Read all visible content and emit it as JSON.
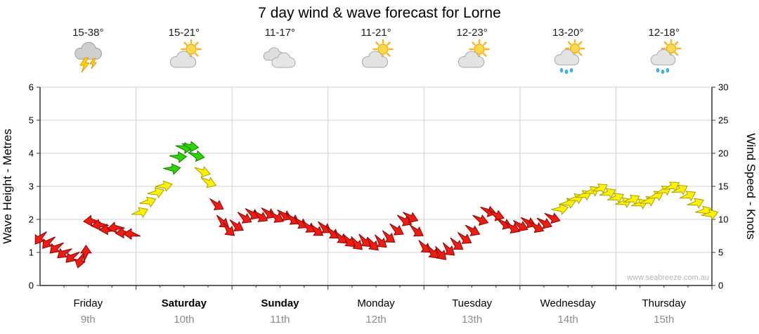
{
  "title": "7 day wind & wave forecast for Lorne",
  "watermark": "www.seabreeze.com.au",
  "days": [
    {
      "name": "Friday",
      "date": "9th",
      "temp": "15-38°",
      "icon": "storm",
      "bold": false
    },
    {
      "name": "Saturday",
      "date": "10th",
      "temp": "15-21°",
      "icon": "sun-cloud",
      "bold": true
    },
    {
      "name": "Sunday",
      "date": "11th",
      "temp": "11-17°",
      "icon": "cloud",
      "bold": true
    },
    {
      "name": "Monday",
      "date": "12th",
      "temp": "11-21°",
      "icon": "sun-cloud",
      "bold": false
    },
    {
      "name": "Tuesday",
      "date": "13th",
      "temp": "12-23°",
      "icon": "sun-cloud",
      "bold": false
    },
    {
      "name": "Wednesday",
      "date": "14th",
      "temp": "13-20°",
      "icon": "sun-rain",
      "bold": false
    },
    {
      "name": "Thursday",
      "date": "15th",
      "temp": "12-18°",
      "icon": "sun-rain",
      "bold": false
    }
  ],
  "chart_data": {
    "type": "scatter",
    "subtype": "wind-arrow-forecast",
    "title": "7 day wind & wave forecast for Lorne",
    "left_axis": {
      "label": "Wave Height - Metres",
      "min": 0,
      "max": 6,
      "ticks": [
        0,
        1,
        2,
        3,
        4,
        5,
        6
      ]
    },
    "right_axis": {
      "label": "Wind Speed - Knots",
      "min": 0,
      "max": 30,
      "ticks": [
        0,
        5,
        10,
        15,
        20,
        25,
        30
      ]
    },
    "x_axis": {
      "categories": [
        "Friday",
        "Saturday",
        "Sunday",
        "Monday",
        "Tuesday",
        "Wednesday",
        "Thursday"
      ],
      "dates": [
        "9th",
        "10th",
        "11th",
        "12th",
        "13th",
        "14th",
        "15th"
      ],
      "bold_categories": [
        "Saturday",
        "Sunday"
      ],
      "hours_total": 168
    },
    "grid": true,
    "legend": "none",
    "colors": {
      "r": {
        "fill": "#ee1c11",
        "stroke": "#8f0000"
      },
      "y": {
        "fill": "#fff200",
        "stroke": "#a8a000"
      },
      "g": {
        "fill": "#2fd500",
        "stroke": "#127a00"
      }
    },
    "points_format": [
      "hour",
      "wind_speed_knots",
      "arrow_rotation_deg",
      "color"
    ],
    "points": [
      [
        0,
        7.3,
        125,
        "r"
      ],
      [
        2,
        6.6,
        130,
        "r"
      ],
      [
        4,
        5.8,
        135,
        "r"
      ],
      [
        6,
        5.0,
        140,
        "r"
      ],
      [
        8,
        4.4,
        135,
        "r"
      ],
      [
        10,
        3.9,
        105,
        "r"
      ],
      [
        11.5,
        4.8,
        270,
        "r"
      ],
      [
        13,
        9.8,
        175,
        "r"
      ],
      [
        15,
        9.2,
        170,
        "r"
      ],
      [
        17,
        8.5,
        175,
        "r"
      ],
      [
        19,
        8.8,
        170,
        "r"
      ],
      [
        21,
        8.0,
        175,
        "r"
      ],
      [
        23,
        7.8,
        180,
        "r"
      ],
      [
        25,
        11.0,
        -25,
        "y"
      ],
      [
        27,
        12.6,
        -22,
        "y"
      ],
      [
        29,
        14.0,
        -20,
        "y"
      ],
      [
        31,
        15.0,
        -15,
        "y"
      ],
      [
        33,
        17.6,
        -10,
        "g"
      ],
      [
        34.5,
        19.4,
        -5,
        "g"
      ],
      [
        36,
        20.8,
        0,
        "g"
      ],
      [
        37.5,
        21.0,
        5,
        "g"
      ],
      [
        39,
        19.6,
        10,
        "g"
      ],
      [
        40.5,
        17.2,
        15,
        "y"
      ],
      [
        42,
        15.6,
        20,
        "y"
      ],
      [
        44,
        12.2,
        30,
        "r"
      ],
      [
        45.5,
        9.6,
        38,
        "r"
      ],
      [
        47,
        8.4,
        42,
        "r"
      ],
      [
        49,
        9.0,
        30,
        "r"
      ],
      [
        51,
        10.2,
        28,
        "r"
      ],
      [
        53,
        10.8,
        25,
        "r"
      ],
      [
        55,
        10.4,
        28,
        "r"
      ],
      [
        57,
        10.9,
        25,
        "r"
      ],
      [
        59,
        10.3,
        28,
        "r"
      ],
      [
        61,
        10.6,
        25,
        "r"
      ],
      [
        63,
        10.0,
        30,
        "r"
      ],
      [
        65,
        9.4,
        30,
        "r"
      ],
      [
        67,
        8.8,
        32,
        "r"
      ],
      [
        69,
        8.3,
        35,
        "r"
      ],
      [
        71,
        8.7,
        32,
        "r"
      ],
      [
        73,
        7.9,
        35,
        "r"
      ],
      [
        75,
        7.2,
        38,
        "r"
      ],
      [
        77,
        6.7,
        40,
        "r"
      ],
      [
        79,
        6.3,
        42,
        "r"
      ],
      [
        81,
        6.7,
        40,
        "r"
      ],
      [
        83,
        6.2,
        42,
        "r"
      ],
      [
        85,
        6.6,
        40,
        "r"
      ],
      [
        87,
        7.3,
        36,
        "r"
      ],
      [
        89,
        8.4,
        30,
        "r"
      ],
      [
        91,
        9.8,
        25,
        "r"
      ],
      [
        92.5,
        10.3,
        22,
        "r"
      ],
      [
        94,
        8.2,
        32,
        "r"
      ],
      [
        96,
        5.8,
        38,
        "r"
      ],
      [
        98,
        5.0,
        42,
        "r"
      ],
      [
        100,
        4.8,
        44,
        "r"
      ],
      [
        102,
        5.4,
        40,
        "r"
      ],
      [
        104,
        6.2,
        35,
        "r"
      ],
      [
        106,
        7.1,
        30,
        "r"
      ],
      [
        108,
        8.3,
        25,
        "r"
      ],
      [
        110,
        9.9,
        18,
        "r"
      ],
      [
        112,
        11.2,
        15,
        "r"
      ],
      [
        114,
        10.6,
        18,
        "r"
      ],
      [
        116,
        9.3,
        22,
        "r"
      ],
      [
        118,
        8.7,
        25,
        "r"
      ],
      [
        120,
        9.0,
        25,
        "r"
      ],
      [
        122,
        9.5,
        22,
        "r"
      ],
      [
        124,
        8.8,
        25,
        "r"
      ],
      [
        126,
        9.4,
        22,
        "r"
      ],
      [
        128,
        10.2,
        18,
        "r"
      ],
      [
        130,
        11.5,
        -15,
        "y"
      ],
      [
        132,
        12.4,
        -20,
        "y"
      ],
      [
        134,
        13.1,
        -24,
        "y"
      ],
      [
        136,
        13.6,
        -26,
        "y"
      ],
      [
        138,
        14.2,
        -28,
        "y"
      ],
      [
        140,
        14.6,
        -30,
        "y"
      ],
      [
        142,
        13.9,
        -26,
        "y"
      ],
      [
        144,
        13.2,
        -26,
        "y"
      ],
      [
        146,
        12.5,
        -24,
        "y"
      ],
      [
        148,
        12.9,
        -28,
        "y"
      ],
      [
        150,
        12.3,
        -25,
        "y"
      ],
      [
        152,
        12.7,
        -28,
        "y"
      ],
      [
        154,
        13.5,
        -30,
        "y"
      ],
      [
        156,
        14.3,
        -32,
        "y"
      ],
      [
        158,
        14.9,
        -32,
        "y"
      ],
      [
        160,
        14.4,
        -30,
        "y"
      ],
      [
        162,
        13.5,
        -28,
        "y"
      ],
      [
        164,
        12.4,
        -24,
        "y"
      ],
      [
        166,
        11.2,
        -20,
        "y"
      ],
      [
        167.5,
        10.7,
        -18,
        "y"
      ]
    ]
  }
}
